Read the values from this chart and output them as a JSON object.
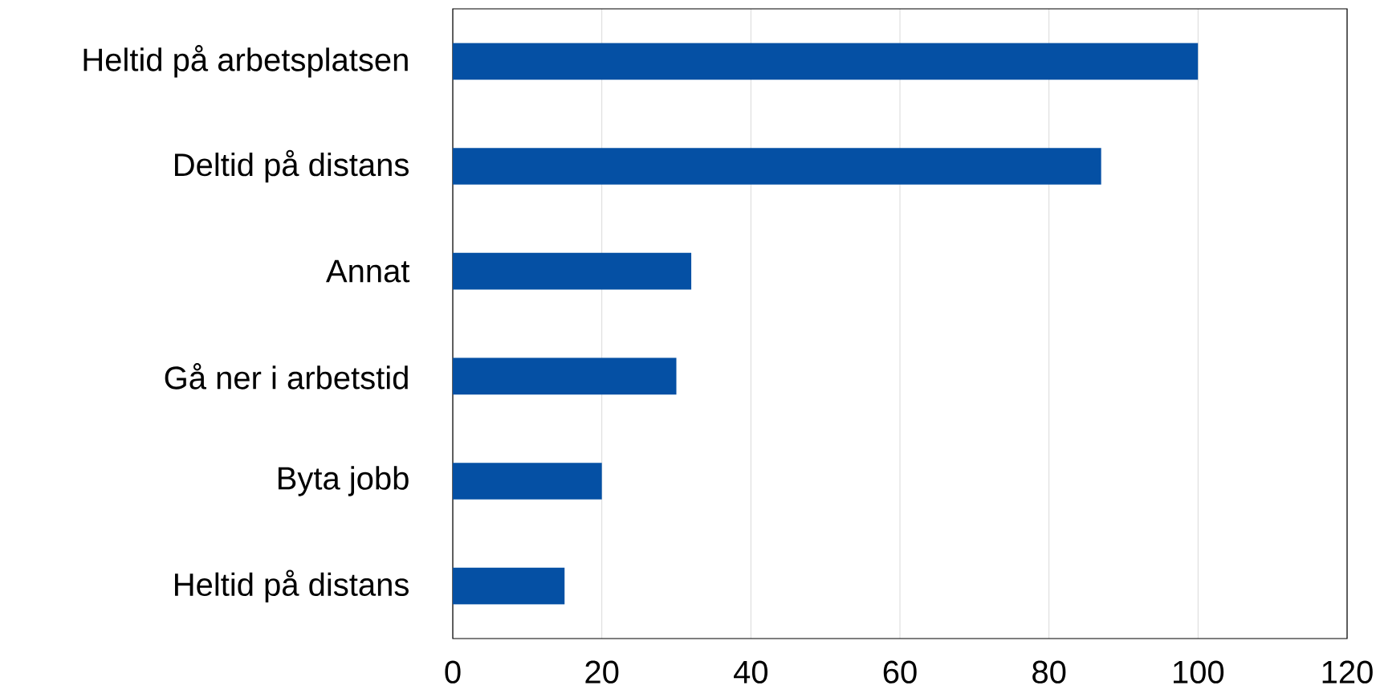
{
  "chart_data": {
    "type": "bar",
    "orientation": "horizontal",
    "categories": [
      "Heltid på arbetsplatsen",
      "Deltid på distans",
      "Annat",
      "Gå ner i arbetstid",
      "Byta jobb",
      "Heltid på distans"
    ],
    "values": [
      100,
      87,
      32,
      30,
      20,
      15
    ],
    "color": "#0550a4",
    "xlim": [
      0,
      120
    ],
    "xticks": [
      0,
      20,
      40,
      60,
      80,
      100,
      120
    ],
    "grid": "x"
  }
}
